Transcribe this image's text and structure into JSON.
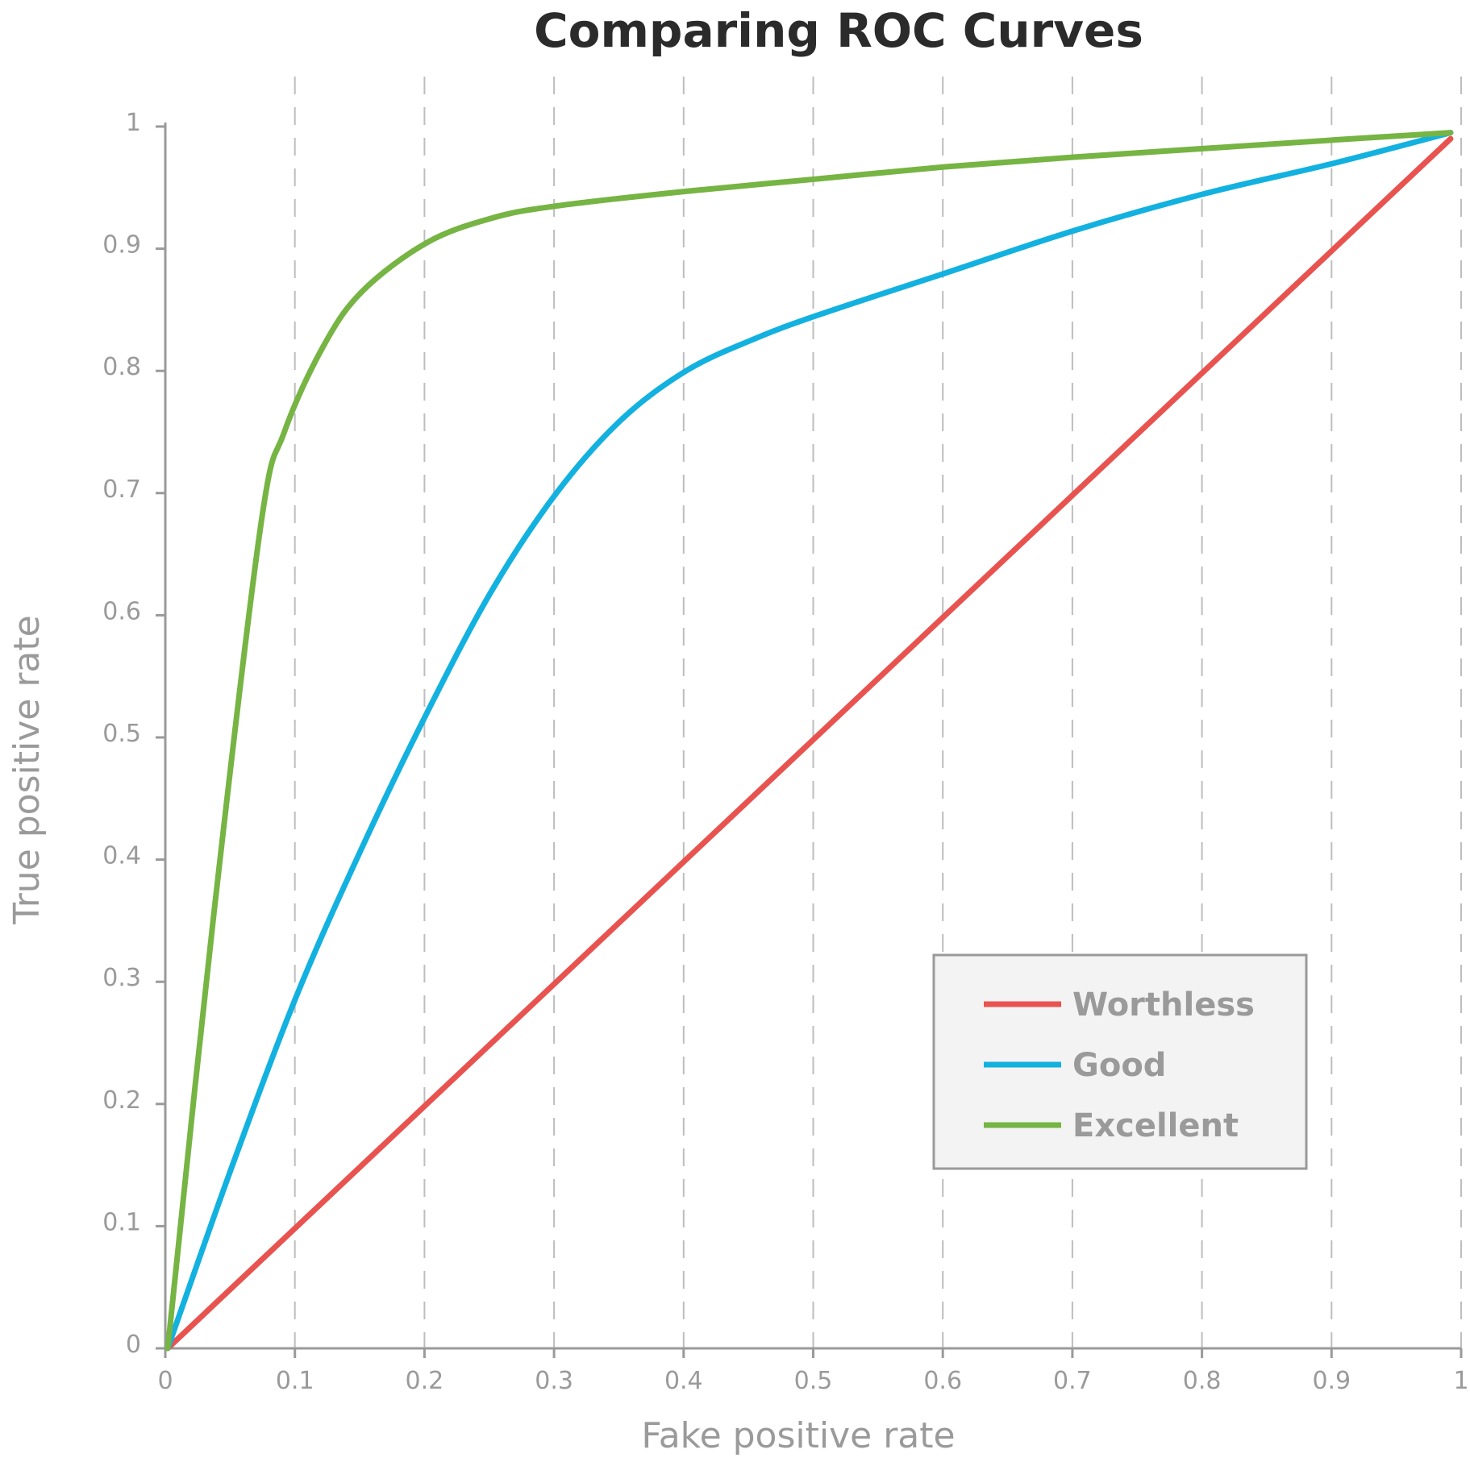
{
  "chart_data": {
    "type": "line",
    "title": "Comparing ROC Curves",
    "xlabel": "Fake positive rate",
    "ylabel": "True positive rate",
    "xlim": [
      0,
      1
    ],
    "ylim": [
      0,
      1
    ],
    "x_ticks": [
      "0",
      "0.1",
      "0.2",
      "0.3",
      "0.4",
      "0.5",
      "0.6",
      "0.7",
      "0.8",
      "0.9",
      "1"
    ],
    "y_ticks": [
      "0",
      "0.1",
      "0.2",
      "0.3",
      "0.4",
      "0.5",
      "0.6",
      "0.7",
      "0.8",
      "0.9",
      "1"
    ],
    "grid": "vertical dashed",
    "legend_position": "bottom-right",
    "series": [
      {
        "name": "Worthless",
        "color": "#e8534f",
        "x": [
          0,
          0.1,
          0.2,
          0.3,
          0.4,
          0.5,
          0.6,
          0.7,
          0.8,
          0.9,
          0.99
        ],
        "y": [
          0,
          0.1,
          0.2,
          0.3,
          0.4,
          0.5,
          0.6,
          0.7,
          0.8,
          0.9,
          0.99
        ]
      },
      {
        "name": "Good",
        "color": "#12b1e0",
        "x": [
          0,
          0.05,
          0.1,
          0.15,
          0.2,
          0.25,
          0.3,
          0.35,
          0.4,
          0.45,
          0.5,
          0.6,
          0.7,
          0.8,
          0.9,
          0.99
        ],
        "y": [
          0,
          0.15,
          0.29,
          0.41,
          0.52,
          0.62,
          0.7,
          0.76,
          0.8,
          0.825,
          0.845,
          0.88,
          0.915,
          0.945,
          0.97,
          0.995
        ]
      },
      {
        "name": "Excellent",
        "color": "#76b443",
        "x": [
          0,
          0.035,
          0.072,
          0.09,
          0.12,
          0.15,
          0.2,
          0.25,
          0.3,
          0.4,
          0.5,
          0.6,
          0.7,
          0.8,
          0.9,
          0.99
        ],
        "y": [
          0,
          0.35,
          0.675,
          0.75,
          0.82,
          0.865,
          0.905,
          0.925,
          0.935,
          0.947,
          0.957,
          0.967,
          0.975,
          0.982,
          0.989,
          0.995
        ]
      }
    ]
  }
}
